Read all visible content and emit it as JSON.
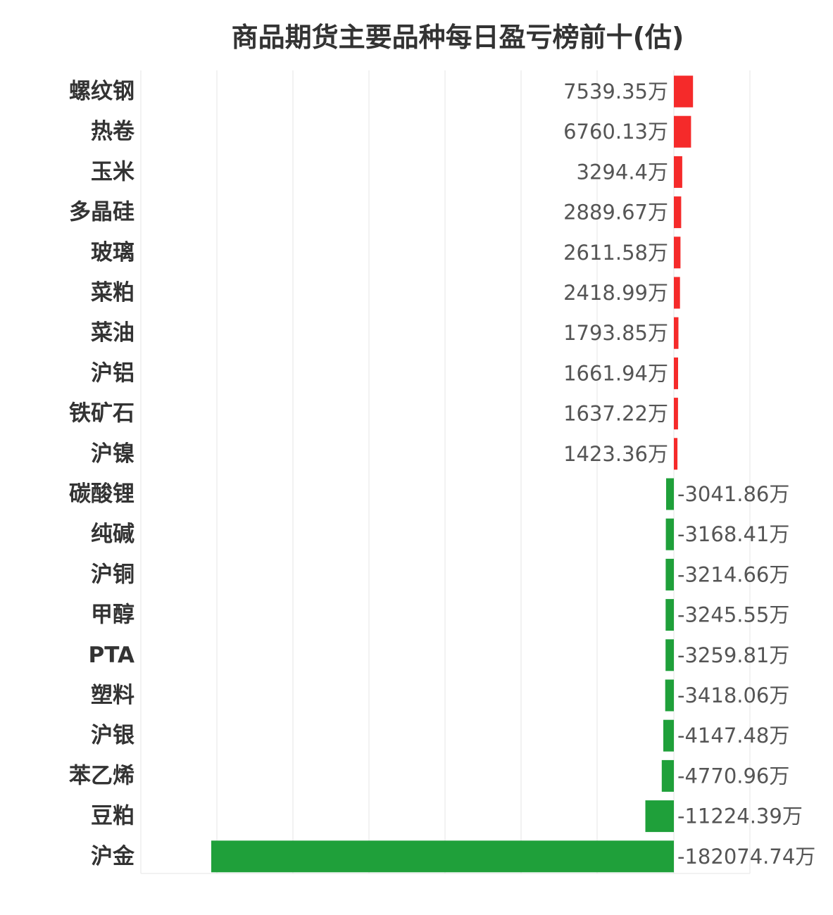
{
  "chart_data": {
    "type": "bar",
    "orientation": "horizontal",
    "title": "商品期货主要品种每日盈亏榜前十(估)",
    "unit": "万",
    "colors": {
      "positive": "#f52a2a",
      "negative": "#1fa03a"
    },
    "categories": [
      "螺纹钢",
      "热卷",
      "玉米",
      "多晶硅",
      "玻璃",
      "菜粕",
      "菜油",
      "沪铝",
      "铁矿石",
      "沪镍",
      "碳酸锂",
      "纯碱",
      "沪铜",
      "甲醇",
      "PTA",
      "塑料",
      "沪银",
      "苯乙烯",
      "豆粕",
      "沪金"
    ],
    "values": [
      7539.35,
      6760.13,
      3294.4,
      2889.67,
      2611.58,
      2418.99,
      1793.85,
      1661.94,
      1637.22,
      1423.36,
      -3041.86,
      -3168.41,
      -3214.66,
      -3245.55,
      -3259.81,
      -3418.06,
      -4147.48,
      -4770.96,
      -11224.39,
      -182074.74
    ],
    "value_labels": [
      "7539.35万",
      "6760.13万",
      "3294.4万",
      "2889.67万",
      "2611.58万",
      "2418.99万",
      "1793.85万",
      "1661.94万",
      "1637.22万",
      "1423.36万",
      "-3041.86万",
      "-3168.41万",
      "-3214.66万",
      "-3245.55万",
      "-3259.81万",
      "-3418.06万",
      "-4147.48万",
      "-4770.96万",
      "-11224.39万",
      "-182074.74万"
    ],
    "grid": true,
    "legend": "none"
  }
}
